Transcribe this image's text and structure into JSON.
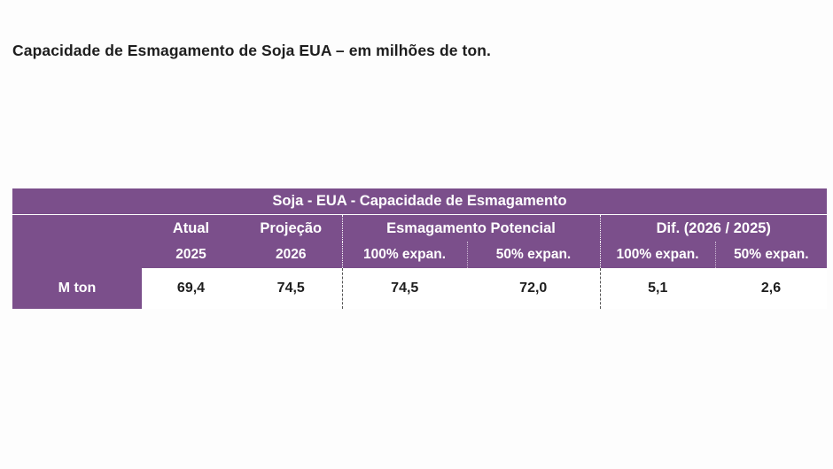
{
  "page": {
    "title": "Capacidade de Esmagamento de Soja EUA – em milhões de ton."
  },
  "table": {
    "title": "Soja - EUA - Capacidade de Esmagamento",
    "headers": {
      "atual": "Atual",
      "atual_year": "2025",
      "projecao": "Projeção",
      "projecao_year": "2026",
      "esmagamento": "Esmagamento Potencial",
      "dif": "Dif. (2026 / 2025)",
      "exp100_a": "100% expan.",
      "exp50_a": "50% expan.",
      "exp100_b": "100% expan.",
      "exp50_b": "50% expan."
    },
    "row": {
      "label": "M ton",
      "values": [
        "69,4",
        "74,5",
        "74,5",
        "72,0",
        "5,1",
        "2,6"
      ]
    },
    "colors": {
      "header_bg": "#7b4f8b",
      "header_text": "#ffffff",
      "body_text": "#1e1e1e"
    }
  }
}
